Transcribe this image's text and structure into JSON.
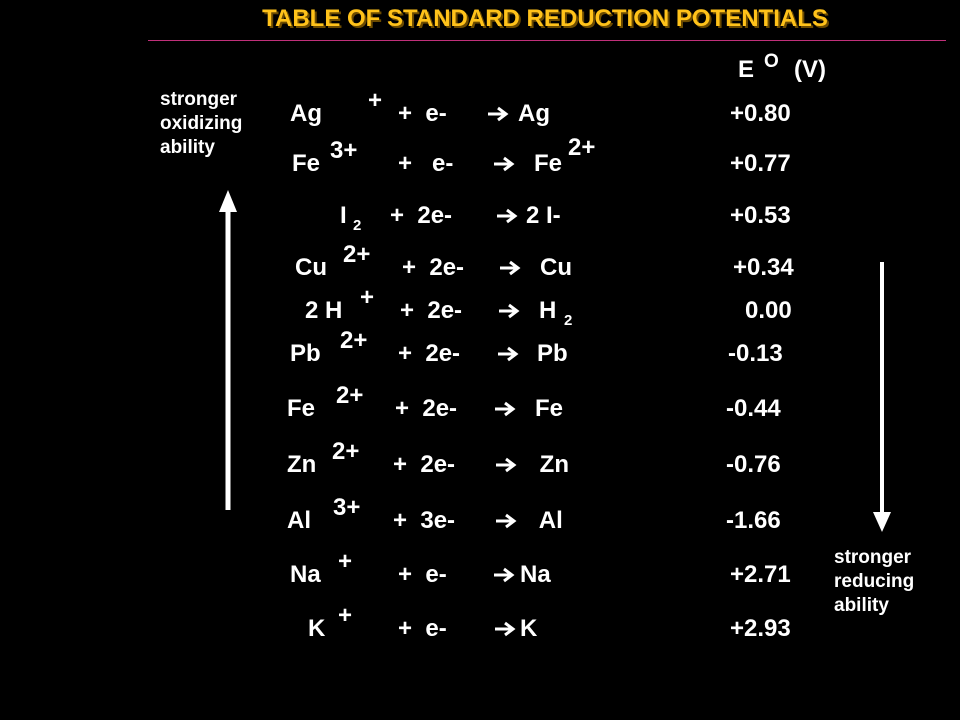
{
  "title": "TABLE OF STANDARD REDUCTION POTENTIALS",
  "header": {
    "symbol": "E",
    "superscript": "O",
    "unit": "(V)"
  },
  "left_label": [
    "stronger",
    "oxidizing",
    "ability"
  ],
  "right_label": [
    "stronger",
    "reducing",
    "ability"
  ],
  "rows": [
    {
      "reactant": "Ag",
      "charge": "+",
      "electrons": "+  e-",
      "product": "Ag",
      "potential": "+0.80"
    },
    {
      "reactant": "Fe",
      "charge": "3+",
      "electrons": "+   e-",
      "product": "Fe",
      "product_charge": "2+",
      "potential": "+0.77"
    },
    {
      "reactant": "I",
      "reactant_sub": "2",
      "electrons": "+  2e-",
      "product": "2 I-",
      "potential": "+0.53"
    },
    {
      "reactant": "Cu",
      "charge": "2+",
      "electrons": "+  2e-",
      "product": "Cu",
      "potential": "+0.34"
    },
    {
      "reactant": "2 H",
      "charge": "+",
      "electrons": "+  2e-",
      "product": "H",
      "product_sub": "2",
      "potential": "0.00"
    },
    {
      "reactant": "Pb",
      "charge": "2+",
      "electrons": "+  2e-",
      "product": "Pb",
      "potential": "-0.13"
    },
    {
      "reactant": "Fe",
      "charge": "2+",
      "electrons": "+  2e-",
      "product": "Fe",
      "potential": "-0.44"
    },
    {
      "reactant": "Zn",
      "charge": "2+",
      "electrons": "+  2e-",
      "product": " Zn",
      "potential": "-0.76"
    },
    {
      "reactant": "Al",
      "charge": "3+",
      "electrons": "+  3e-",
      "product": " Al",
      "potential": "-1.66"
    },
    {
      "reactant": "Na",
      "charge": "+",
      "electrons": "+  e-",
      "product": "Na",
      "potential": "+2.71"
    },
    {
      "reactant": "K",
      "charge": "+",
      "electrons": "+  e-",
      "product": "K",
      "potential": "+2.93"
    }
  ]
}
